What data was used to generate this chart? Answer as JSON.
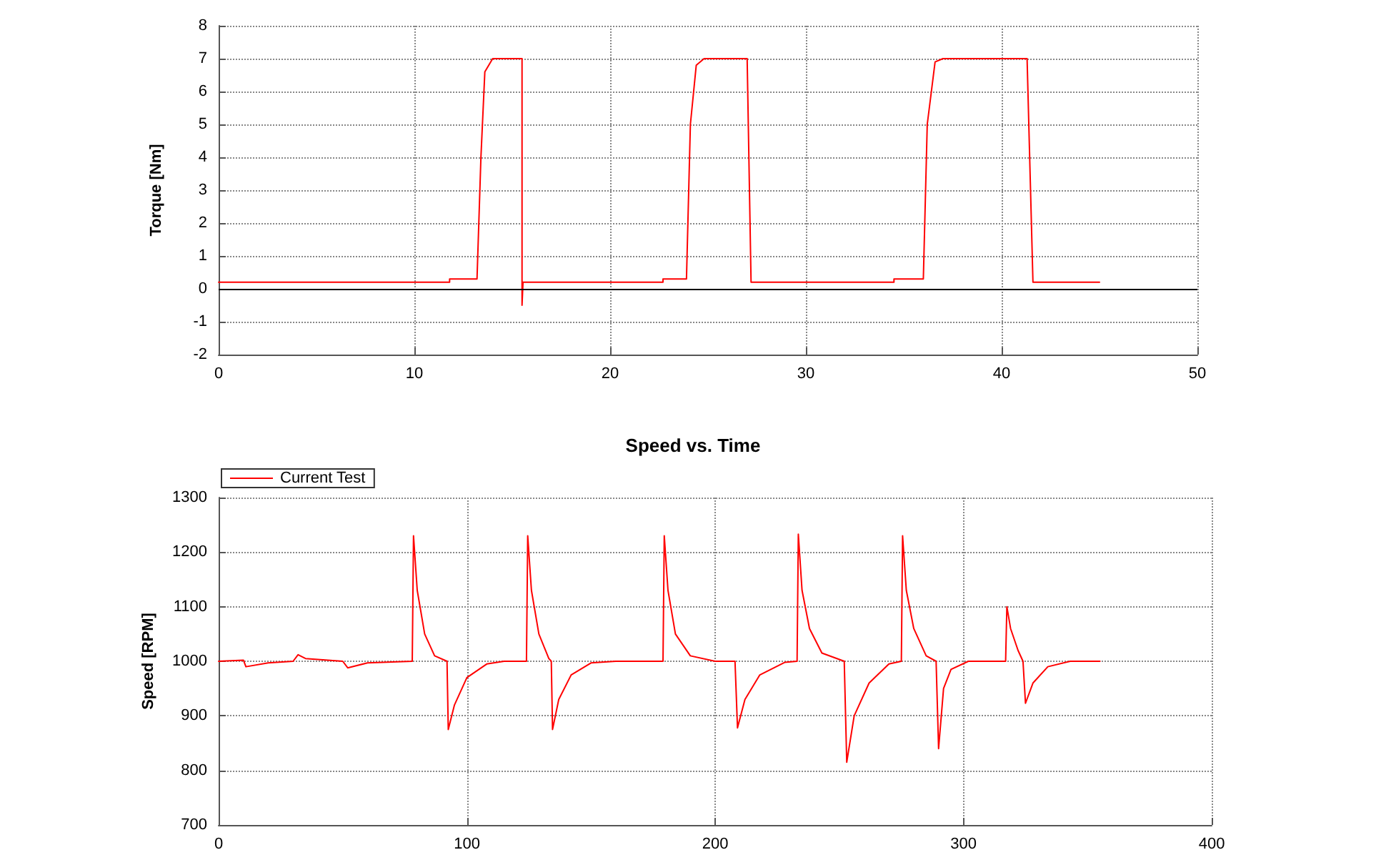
{
  "chart_data": [
    {
      "type": "line",
      "ylabel": "Torque [Nm]",
      "xlim": [
        0,
        50
      ],
      "xticks": [
        0,
        10,
        20,
        30,
        40,
        50
      ],
      "ylim": [
        -2,
        8
      ],
      "yticks": [
        -2,
        -1,
        0,
        1,
        2,
        3,
        4,
        5,
        6,
        7,
        8
      ],
      "grid": true,
      "legend": false,
      "marker": "none",
      "line_style": "solid",
      "ref_lines": [
        {
          "axis": "y",
          "value": 0,
          "color": "#000000"
        }
      ],
      "series": [
        {
          "color": "#ff0000",
          "x": [
            0,
            11.8,
            11.8,
            13.2,
            13.4,
            13.6,
            14,
            15.5,
            15.5,
            15.55,
            22.7,
            22.7,
            23.9,
            24.1,
            24.4,
            24.8,
            27,
            27.2,
            34.5,
            34.5,
            36,
            36.2,
            36.6,
            37,
            41.3,
            41.6,
            45
          ],
          "values": [
            0.2,
            0.2,
            0.3,
            0.3,
            4,
            6.6,
            7,
            7,
            -0.5,
            0.2,
            0.2,
            0.3,
            0.3,
            5,
            6.8,
            7,
            7,
            0.2,
            0.2,
            0.3,
            0.3,
            5,
            6.9,
            7,
            7,
            0.2,
            0.2
          ]
        }
      ]
    },
    {
      "type": "line",
      "title": "Speed vs. Time",
      "ylabel": "Speed [RPM]",
      "xlim": [
        0,
        400
      ],
      "xticks": [
        0,
        100,
        200,
        300,
        400
      ],
      "ylim": [
        700,
        1300
      ],
      "yticks": [
        700,
        800,
        900,
        1000,
        1100,
        1200,
        1300
      ],
      "grid": true,
      "legend": "top left",
      "marker": "none",
      "line_style": "solid",
      "series": [
        {
          "name": "Current Test",
          "color": "#ff0000",
          "x": [
            0,
            10,
            11,
            20,
            30,
            32,
            35,
            50,
            52,
            60,
            78,
            78.5,
            80,
            83,
            87,
            92,
            92.5,
            95,
            100,
            108,
            115,
            124,
            124.5,
            126,
            129,
            133,
            134,
            134.5,
            137,
            142,
            150,
            160,
            179,
            179.5,
            181,
            184,
            190,
            200,
            208,
            209,
            212,
            218,
            228,
            233,
            233.5,
            235,
            238,
            243,
            252,
            253,
            256,
            262,
            270,
            275,
            275.5,
            277,
            280,
            285,
            289,
            290,
            292,
            295,
            302,
            317,
            317.5,
            319,
            322,
            324,
            325,
            328,
            334,
            343,
            355
          ],
          "values": [
            1000,
            1002,
            990,
            997,
            1000,
            1012,
            1005,
            1000,
            988,
            997,
            1000,
            1230,
            1130,
            1050,
            1010,
            1000,
            875,
            920,
            970,
            995,
            1000,
            1000,
            1230,
            1130,
            1050,
            1005,
            1000,
            875,
            930,
            975,
            997,
            1000,
            1000,
            1230,
            1130,
            1050,
            1010,
            1000,
            1000,
            878,
            930,
            975,
            998,
            1000,
            1233,
            1130,
            1060,
            1015,
            1000,
            815,
            900,
            960,
            995,
            1000,
            1230,
            1130,
            1060,
            1010,
            1000,
            840,
            950,
            985,
            1000,
            1000,
            1100,
            1060,
            1020,
            1000,
            923,
            960,
            990,
            1000,
            1000
          ]
        }
      ]
    }
  ]
}
